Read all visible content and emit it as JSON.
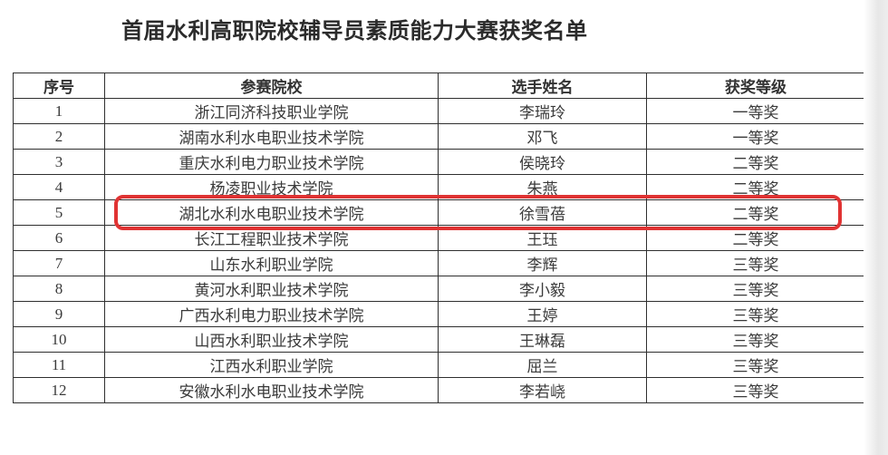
{
  "title": "首届水利高职院校辅导员素质能力大赛获奖名单",
  "table": {
    "headers": [
      "序号",
      "参赛院校",
      "选手姓名",
      "获奖等级"
    ],
    "column_keys": [
      "index",
      "school",
      "name",
      "award"
    ],
    "rows": [
      {
        "index": "1",
        "school": "浙江同济科技职业学院",
        "name": "李瑞玲",
        "award": "一等奖"
      },
      {
        "index": "2",
        "school": "湖南水利水电职业技术学院",
        "name": "邓飞",
        "award": "一等奖"
      },
      {
        "index": "3",
        "school": "重庆水利电力职业技术学院",
        "name": "侯晓玲",
        "award": "二等奖"
      },
      {
        "index": "4",
        "school": "杨凌职业技术学院",
        "name": "朱燕",
        "award": "二等奖"
      },
      {
        "index": "5",
        "school": "湖北水利水电职业技术学院",
        "name": "徐雪蓓",
        "award": "二等奖"
      },
      {
        "index": "6",
        "school": "长江工程职业技术学院",
        "name": "王珏",
        "award": "二等奖"
      },
      {
        "index": "7",
        "school": "山东水利职业学院",
        "name": "李辉",
        "award": "三等奖"
      },
      {
        "index": "8",
        "school": "黄河水利职业技术学院",
        "name": "李小毅",
        "award": "三等奖"
      },
      {
        "index": "9",
        "school": "广西水利电力职业技术学院",
        "name": "王婷",
        "award": "三等奖"
      },
      {
        "index": "10",
        "school": "山西水利职业技术学院",
        "name": "王琳磊",
        "award": "三等奖"
      },
      {
        "index": "11",
        "school": "江西水利职业学院",
        "name": "屈兰",
        "award": "三等奖"
      },
      {
        "index": "12",
        "school": "安徽水利水电职业技术学院",
        "name": "李若峣",
        "award": "三等奖"
      }
    ],
    "highlighted_row_number": 5,
    "highlight_color": "#e03333"
  },
  "colors": {
    "border": "#2f2f2f",
    "text": "#3a3a3a",
    "title_text": "#2b2b2b",
    "background": "#ffffff"
  }
}
